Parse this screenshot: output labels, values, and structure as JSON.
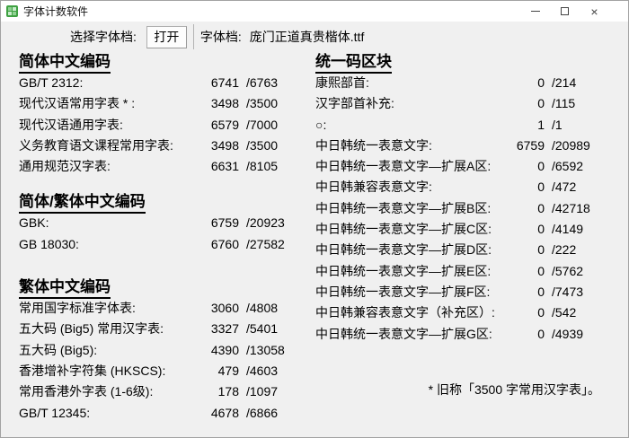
{
  "colors": {
    "window_bg": "#f0f0f0",
    "titlebar_bg": "#ffffff",
    "text": "#000000",
    "icon_green": "#3fa142",
    "window_border": "#a3a3a3"
  },
  "titlebar": {
    "title": "字体计数软件"
  },
  "toolbar": {
    "select_label": "选择字体档:",
    "open_button": "打开",
    "file_label": "字体档:",
    "filename": "庞门正道真贵楷体.ttf"
  },
  "left_sections": [
    {
      "header": "简体中文编码",
      "rows": [
        {
          "label": "GB/T 2312:",
          "count": "6741",
          "total": "/6763"
        },
        {
          "label": "现代汉语常用字表 * :",
          "count": "3498",
          "total": "/3500"
        },
        {
          "label": "现代汉语通用字表:",
          "count": "6579",
          "total": "/7000"
        },
        {
          "label": "义务教育语文课程常用字表:",
          "count": "3498",
          "total": "/3500"
        },
        {
          "label": "通用规范汉字表:",
          "count": "6631",
          "total": "/8105"
        }
      ]
    },
    {
      "header": "简体/繁体中文编码",
      "rows": [
        {
          "label": "GBK:",
          "count": "6759",
          "total": "/20923"
        },
        {
          "label": "GB 18030:",
          "count": "6760",
          "total": "/27582"
        }
      ]
    },
    {
      "header": "繁体中文编码",
      "rows": [
        {
          "label": "常用国字标准字体表:",
          "count": "3060",
          "total": "/4808"
        },
        {
          "label": "五大码 (Big5) 常用汉字表:",
          "count": "3327",
          "total": "/5401"
        },
        {
          "label": "五大码 (Big5):",
          "count": "4390",
          "total": "/13058"
        },
        {
          "label": "香港增补字符集 (HKSCS):",
          "count": "479",
          "total": "/4603"
        },
        {
          "label": "常用香港外字表 (1-6级):",
          "count": "178",
          "total": "/1097"
        },
        {
          "label": "GB/T 12345:",
          "count": "4678",
          "total": "/6866"
        }
      ]
    }
  ],
  "right_sections": [
    {
      "header": "统一码区块",
      "rows": [
        {
          "label": "康熙部首:",
          "count": "0",
          "total": "/214"
        },
        {
          "label": "汉字部首补充:",
          "count": "0",
          "total": "/115"
        },
        {
          "label": "○:",
          "count": "1",
          "total": "/1"
        },
        {
          "label": "中日韩统一表意文字:",
          "count": "6759",
          "total": "/20989"
        },
        {
          "label": "中日韩统一表意文字—扩展A区:",
          "count": "0",
          "total": "/6592"
        },
        {
          "label": "中日韩兼容表意文字:",
          "count": "0",
          "total": "/472"
        },
        {
          "label": "中日韩统一表意文字—扩展B区:",
          "count": "0",
          "total": "/42718"
        },
        {
          "label": "中日韩统一表意文字—扩展C区:",
          "count": "0",
          "total": "/4149"
        },
        {
          "label": "中日韩统一表意文字—扩展D区:",
          "count": "0",
          "total": "/222"
        },
        {
          "label": "中日韩统一表意文字—扩展E区:",
          "count": "0",
          "total": "/5762"
        },
        {
          "label": "中日韩统一表意文字—扩展F区:",
          "count": "0",
          "total": "/7473"
        },
        {
          "label": "中日韩兼容表意文字（补充区）:",
          "count": "0",
          "total": "/542"
        },
        {
          "label": "中日韩统一表意文字—扩展G区:",
          "count": "0",
          "total": "/4939"
        }
      ]
    }
  ],
  "footnote": "* 旧称「3500 字常用汉字表」。"
}
